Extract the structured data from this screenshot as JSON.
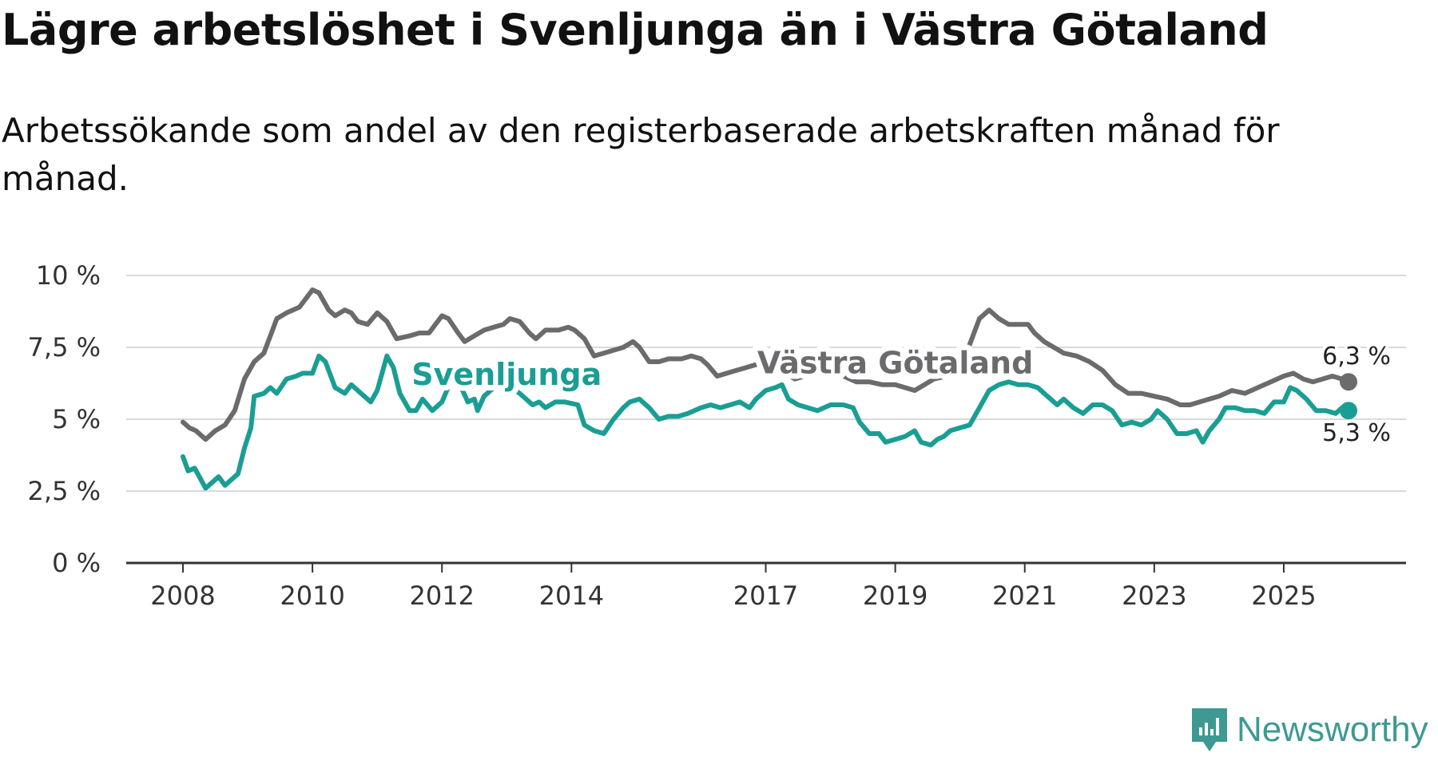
{
  "title": "Lägre arbetslöshet i Svenljunga än i Västra Götaland",
  "subtitle": "Arbetssökande som andel av den registerbaserade arbetskraften månad för månad.",
  "brand": {
    "name": "Newsworthy",
    "color": "#3d9a92"
  },
  "chart_data": {
    "type": "line",
    "title": "Lägre arbetslöshet i Svenljunga än i Västra Götaland",
    "ylim": [
      0,
      10
    ],
    "xlim": [
      2008,
      2026.1
    ],
    "y_ticks": [
      {
        "value": 0,
        "label": "0 %"
      },
      {
        "value": 2.5,
        "label": "2,5 %"
      },
      {
        "value": 5,
        "label": "5 %"
      },
      {
        "value": 7.5,
        "label": "7,5 %"
      },
      {
        "value": 10,
        "label": "10 %"
      }
    ],
    "x_ticks": [
      {
        "value": 2008,
        "label": "2008"
      },
      {
        "value": 2010,
        "label": "2010"
      },
      {
        "value": 2012,
        "label": "2012"
      },
      {
        "value": 2014,
        "label": "2014"
      },
      {
        "value": 2017,
        "label": "2017"
      },
      {
        "value": 2019,
        "label": "2019"
      },
      {
        "value": 2021,
        "label": "2021"
      },
      {
        "value": 2023,
        "label": "2023"
      },
      {
        "value": 2025,
        "label": "2025"
      }
    ],
    "series": [
      {
        "name": "Västra Götaland",
        "color": "#6b6b6e",
        "end_label": "6,3 %",
        "points": [
          [
            2008.0,
            4.9
          ],
          [
            2008.1,
            4.7
          ],
          [
            2008.2,
            4.6
          ],
          [
            2008.35,
            4.3
          ],
          [
            2008.5,
            4.6
          ],
          [
            2008.65,
            4.8
          ],
          [
            2008.8,
            5.3
          ],
          [
            2008.95,
            6.4
          ],
          [
            2009.1,
            7.0
          ],
          [
            2009.25,
            7.3
          ],
          [
            2009.45,
            8.5
          ],
          [
            2009.6,
            8.7
          ],
          [
            2009.8,
            8.9
          ],
          [
            2010.0,
            9.5
          ],
          [
            2010.1,
            9.4
          ],
          [
            2010.25,
            8.8
          ],
          [
            2010.35,
            8.6
          ],
          [
            2010.5,
            8.8
          ],
          [
            2010.6,
            8.7
          ],
          [
            2010.7,
            8.4
          ],
          [
            2010.85,
            8.3
          ],
          [
            2011.0,
            8.7
          ],
          [
            2011.15,
            8.4
          ],
          [
            2011.3,
            7.8
          ],
          [
            2011.5,
            7.9
          ],
          [
            2011.65,
            8.0
          ],
          [
            2011.8,
            8.0
          ],
          [
            2012.0,
            8.6
          ],
          [
            2012.1,
            8.5
          ],
          [
            2012.25,
            8.0
          ],
          [
            2012.35,
            7.7
          ],
          [
            2012.5,
            7.9
          ],
          [
            2012.65,
            8.1
          ],
          [
            2012.8,
            8.2
          ],
          [
            2012.95,
            8.3
          ],
          [
            2013.05,
            8.5
          ],
          [
            2013.2,
            8.4
          ],
          [
            2013.35,
            8.0
          ],
          [
            2013.45,
            7.8
          ],
          [
            2013.6,
            8.1
          ],
          [
            2013.8,
            8.1
          ],
          [
            2013.95,
            8.2
          ],
          [
            2014.05,
            8.1
          ],
          [
            2014.2,
            7.8
          ],
          [
            2014.35,
            7.2
          ],
          [
            2014.5,
            7.3
          ],
          [
            2014.65,
            7.4
          ],
          [
            2014.8,
            7.5
          ],
          [
            2014.95,
            7.7
          ],
          [
            2015.05,
            7.5
          ],
          [
            2015.2,
            7.0
          ],
          [
            2015.35,
            7.0
          ],
          [
            2015.5,
            7.1
          ],
          [
            2015.7,
            7.1
          ],
          [
            2015.85,
            7.2
          ],
          [
            2016.0,
            7.1
          ],
          [
            2016.1,
            6.9
          ],
          [
            2016.25,
            6.5
          ],
          [
            2016.4,
            6.6
          ],
          [
            2016.55,
            6.7
          ],
          [
            2016.7,
            6.8
          ],
          [
            2016.85,
            6.9
          ],
          [
            2017.0,
            6.9
          ],
          [
            2017.15,
            6.8
          ],
          [
            2017.3,
            6.6
          ],
          [
            2017.45,
            6.4
          ],
          [
            2017.6,
            6.5
          ],
          [
            2017.8,
            6.6
          ],
          [
            2018.0,
            6.6
          ],
          [
            2018.2,
            6.5
          ],
          [
            2018.4,
            6.3
          ],
          [
            2018.6,
            6.3
          ],
          [
            2018.8,
            6.2
          ],
          [
            2019.0,
            6.2
          ],
          [
            2019.15,
            6.1
          ],
          [
            2019.3,
            6.0
          ],
          [
            2019.45,
            6.2
          ],
          [
            2019.6,
            6.4
          ],
          [
            2019.8,
            6.5
          ],
          [
            2020.0,
            6.8
          ],
          [
            2020.15,
            7.6
          ],
          [
            2020.3,
            8.5
          ],
          [
            2020.45,
            8.8
          ],
          [
            2020.6,
            8.5
          ],
          [
            2020.75,
            8.3
          ],
          [
            2020.9,
            8.3
          ],
          [
            2021.05,
            8.3
          ],
          [
            2021.15,
            8.0
          ],
          [
            2021.3,
            7.7
          ],
          [
            2021.45,
            7.5
          ],
          [
            2021.6,
            7.3
          ],
          [
            2021.8,
            7.2
          ],
          [
            2022.0,
            7.0
          ],
          [
            2022.2,
            6.7
          ],
          [
            2022.4,
            6.2
          ],
          [
            2022.6,
            5.9
          ],
          [
            2022.8,
            5.9
          ],
          [
            2023.0,
            5.8
          ],
          [
            2023.2,
            5.7
          ],
          [
            2023.4,
            5.5
          ],
          [
            2023.55,
            5.5
          ],
          [
            2023.7,
            5.6
          ],
          [
            2023.85,
            5.7
          ],
          [
            2024.0,
            5.8
          ],
          [
            2024.2,
            6.0
          ],
          [
            2024.4,
            5.9
          ],
          [
            2024.6,
            6.1
          ],
          [
            2024.8,
            6.3
          ],
          [
            2025.0,
            6.5
          ],
          [
            2025.15,
            6.6
          ],
          [
            2025.3,
            6.4
          ],
          [
            2025.45,
            6.3
          ],
          [
            2025.6,
            6.4
          ],
          [
            2025.75,
            6.5
          ],
          [
            2025.9,
            6.4
          ],
          [
            2026.0,
            6.3
          ]
        ]
      },
      {
        "name": "Svenljunga",
        "color": "#1a9e94",
        "end_label": "5,3 %",
        "points": [
          [
            2008.0,
            3.7
          ],
          [
            2008.08,
            3.2
          ],
          [
            2008.18,
            3.3
          ],
          [
            2008.35,
            2.6
          ],
          [
            2008.45,
            2.8
          ],
          [
            2008.55,
            3.0
          ],
          [
            2008.65,
            2.7
          ],
          [
            2008.85,
            3.1
          ],
          [
            2008.95,
            4.0
          ],
          [
            2009.05,
            4.7
          ],
          [
            2009.1,
            5.8
          ],
          [
            2009.25,
            5.9
          ],
          [
            2009.35,
            6.1
          ],
          [
            2009.45,
            5.9
          ],
          [
            2009.6,
            6.4
          ],
          [
            2009.75,
            6.5
          ],
          [
            2009.85,
            6.6
          ],
          [
            2010.0,
            6.6
          ],
          [
            2010.1,
            7.2
          ],
          [
            2010.2,
            7.0
          ],
          [
            2010.35,
            6.1
          ],
          [
            2010.5,
            5.9
          ],
          [
            2010.6,
            6.2
          ],
          [
            2010.75,
            5.9
          ],
          [
            2010.9,
            5.6
          ],
          [
            2011.0,
            6.0
          ],
          [
            2011.15,
            7.2
          ],
          [
            2011.25,
            6.8
          ],
          [
            2011.35,
            5.9
          ],
          [
            2011.5,
            5.3
          ],
          [
            2011.6,
            5.3
          ],
          [
            2011.7,
            5.7
          ],
          [
            2011.85,
            5.3
          ],
          [
            2012.0,
            5.6
          ],
          [
            2012.15,
            6.4
          ],
          [
            2012.3,
            6.1
          ],
          [
            2012.4,
            5.6
          ],
          [
            2012.5,
            5.7
          ],
          [
            2012.55,
            5.3
          ],
          [
            2012.65,
            5.8
          ],
          [
            2012.8,
            6.1
          ],
          [
            2013.0,
            6.2
          ],
          [
            2013.2,
            5.9
          ],
          [
            2013.4,
            5.5
          ],
          [
            2013.5,
            5.6
          ],
          [
            2013.6,
            5.4
          ],
          [
            2013.75,
            5.6
          ],
          [
            2013.9,
            5.6
          ],
          [
            2014.1,
            5.5
          ],
          [
            2014.2,
            4.8
          ],
          [
            2014.35,
            4.6
          ],
          [
            2014.5,
            4.5
          ],
          [
            2014.65,
            5.0
          ],
          [
            2014.8,
            5.4
          ],
          [
            2014.9,
            5.6
          ],
          [
            2015.05,
            5.7
          ],
          [
            2015.2,
            5.4
          ],
          [
            2015.35,
            5.0
          ],
          [
            2015.5,
            5.1
          ],
          [
            2015.65,
            5.1
          ],
          [
            2015.8,
            5.2
          ],
          [
            2016.0,
            5.4
          ],
          [
            2016.15,
            5.5
          ],
          [
            2016.3,
            5.4
          ],
          [
            2016.45,
            5.5
          ],
          [
            2016.6,
            5.6
          ],
          [
            2016.75,
            5.4
          ],
          [
            2016.85,
            5.7
          ],
          [
            2017.0,
            6.0
          ],
          [
            2017.15,
            6.1
          ],
          [
            2017.25,
            6.2
          ],
          [
            2017.35,
            5.7
          ],
          [
            2017.5,
            5.5
          ],
          [
            2017.65,
            5.4
          ],
          [
            2017.8,
            5.3
          ],
          [
            2018.0,
            5.5
          ],
          [
            2018.2,
            5.5
          ],
          [
            2018.35,
            5.4
          ],
          [
            2018.45,
            4.9
          ],
          [
            2018.6,
            4.5
          ],
          [
            2018.75,
            4.5
          ],
          [
            2018.85,
            4.2
          ],
          [
            2019.0,
            4.3
          ],
          [
            2019.15,
            4.4
          ],
          [
            2019.3,
            4.6
          ],
          [
            2019.4,
            4.2
          ],
          [
            2019.55,
            4.1
          ],
          [
            2019.65,
            4.3
          ],
          [
            2019.75,
            4.4
          ],
          [
            2019.85,
            4.6
          ],
          [
            2020.0,
            4.7
          ],
          [
            2020.15,
            4.8
          ],
          [
            2020.3,
            5.4
          ],
          [
            2020.45,
            6.0
          ],
          [
            2020.6,
            6.2
          ],
          [
            2020.75,
            6.3
          ],
          [
            2020.9,
            6.2
          ],
          [
            2021.05,
            6.2
          ],
          [
            2021.2,
            6.1
          ],
          [
            2021.35,
            5.8
          ],
          [
            2021.5,
            5.5
          ],
          [
            2021.6,
            5.7
          ],
          [
            2021.75,
            5.4
          ],
          [
            2021.9,
            5.2
          ],
          [
            2022.05,
            5.5
          ],
          [
            2022.2,
            5.5
          ],
          [
            2022.35,
            5.3
          ],
          [
            2022.5,
            4.8
          ],
          [
            2022.65,
            4.9
          ],
          [
            2022.8,
            4.8
          ],
          [
            2022.95,
            5.0
          ],
          [
            2023.05,
            5.3
          ],
          [
            2023.2,
            5.0
          ],
          [
            2023.35,
            4.5
          ],
          [
            2023.5,
            4.5
          ],
          [
            2023.65,
            4.6
          ],
          [
            2023.75,
            4.2
          ],
          [
            2023.85,
            4.6
          ],
          [
            2024.0,
            5.0
          ],
          [
            2024.1,
            5.4
          ],
          [
            2024.25,
            5.4
          ],
          [
            2024.4,
            5.3
          ],
          [
            2024.55,
            5.3
          ],
          [
            2024.7,
            5.2
          ],
          [
            2024.85,
            5.6
          ],
          [
            2025.0,
            5.6
          ],
          [
            2025.1,
            6.1
          ],
          [
            2025.2,
            6.0
          ],
          [
            2025.35,
            5.7
          ],
          [
            2025.5,
            5.3
          ],
          [
            2025.65,
            5.3
          ],
          [
            2025.8,
            5.2
          ],
          [
            2025.9,
            5.4
          ],
          [
            2026.0,
            5.3
          ]
        ]
      }
    ],
    "annotations": [
      {
        "text": "Svenljunga",
        "series": "Svenljunga",
        "x": 2013.0,
        "y": 6.2
      },
      {
        "text": "Västra Götaland",
        "series": "Västra Götaland",
        "x": 2019.0,
        "y": 6.6
      }
    ]
  }
}
